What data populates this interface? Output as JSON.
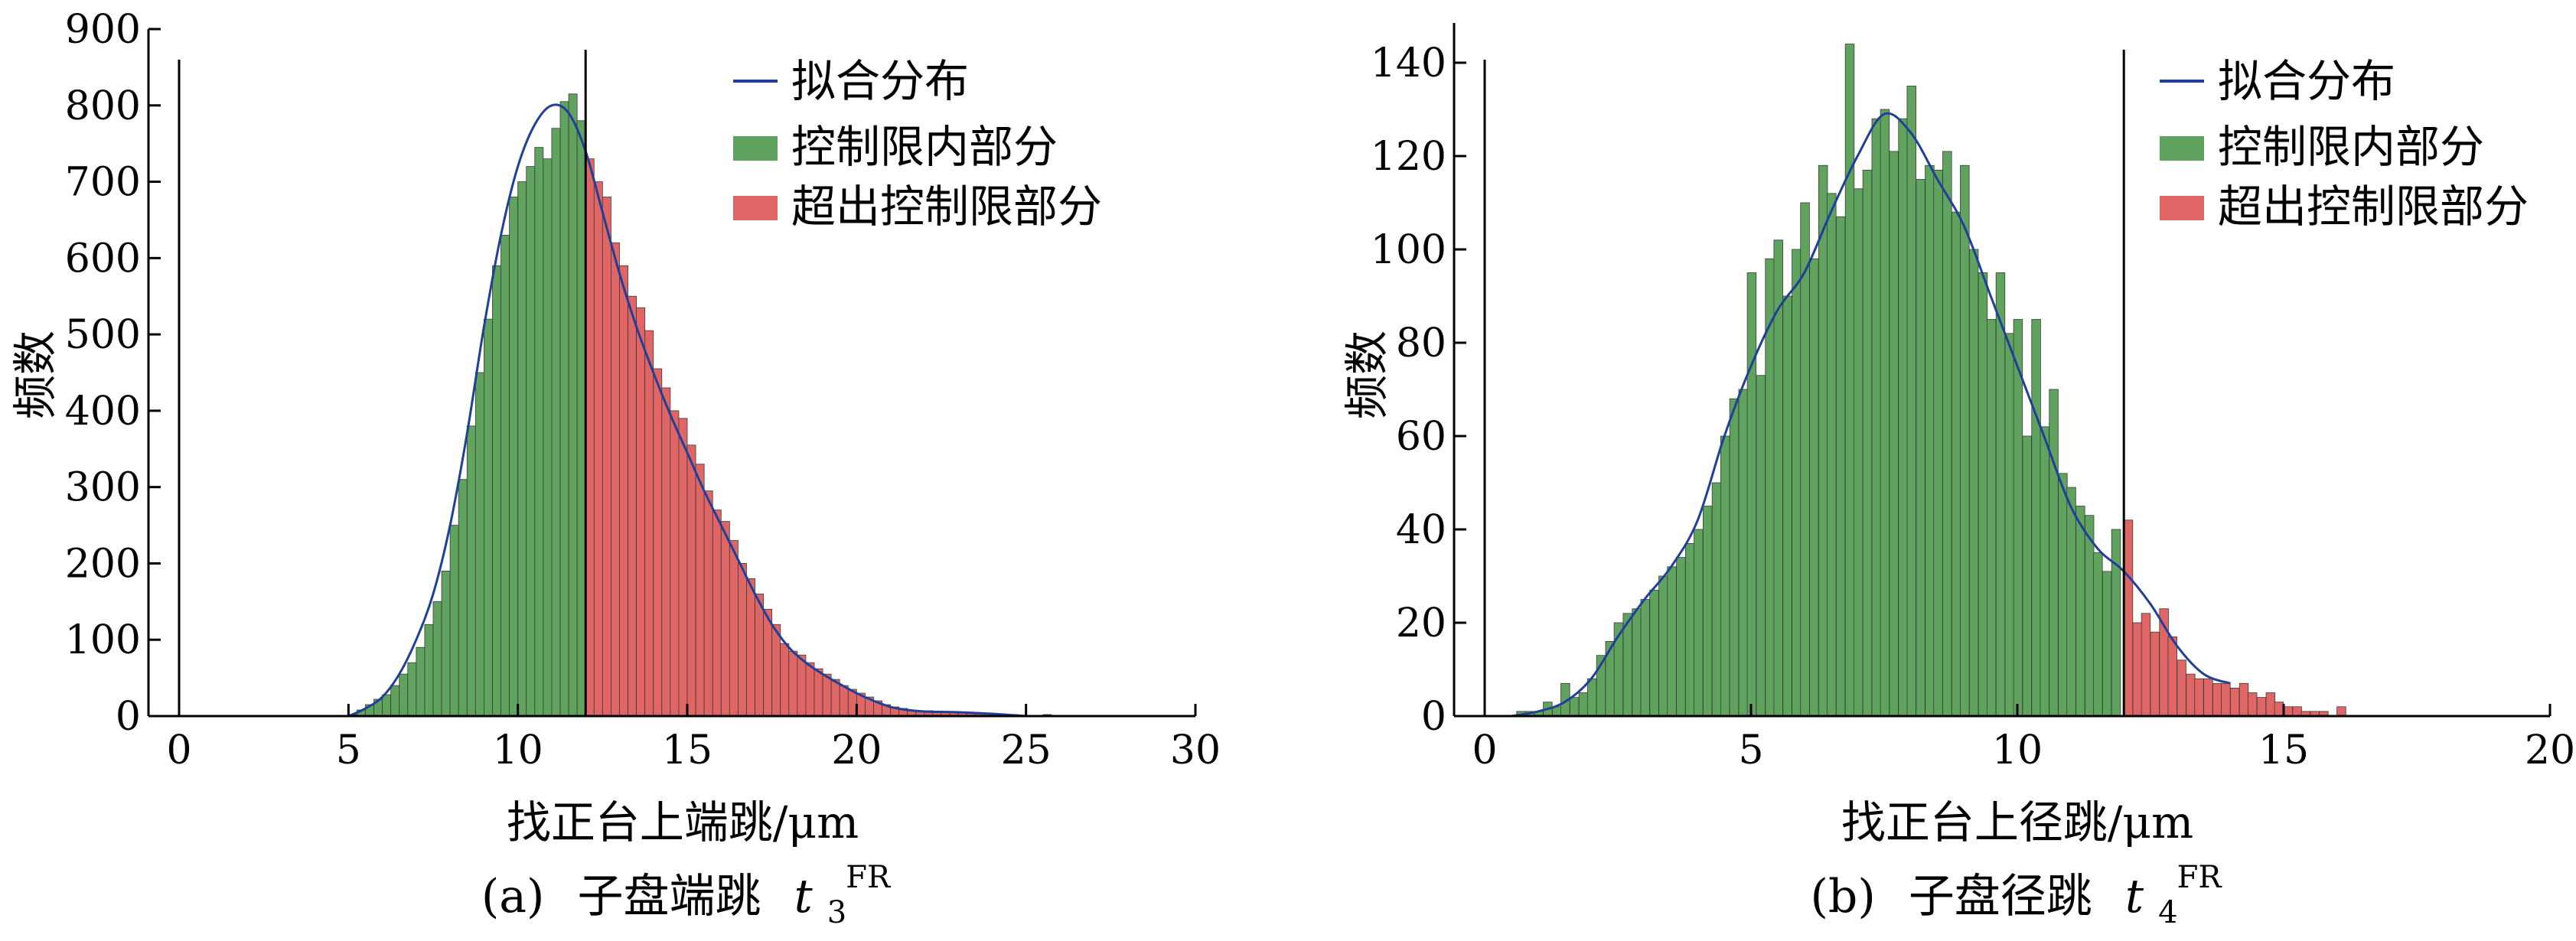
{
  "colors": {
    "in_limit": "#5fa35f",
    "out_limit": "#e06666",
    "fit_line": "#1f3f99",
    "axis": "#000000"
  },
  "chart_data": [
    {
      "type": "bar",
      "caption_prefix": "(a)",
      "caption_text": "子盘端跳",
      "caption_symbol": "t",
      "caption_sub": "3",
      "caption_sup": "FR",
      "xlabel": "找正台上端跳/μm",
      "ylabel": "频数",
      "xlim": [
        0,
        30
      ],
      "ylim": [
        0,
        900
      ],
      "xticks": [
        0,
        5,
        10,
        15,
        20,
        25,
        30
      ],
      "yticks": [
        0,
        100,
        200,
        300,
        400,
        500,
        600,
        700,
        800,
        900
      ],
      "control_limit": 12,
      "bin_width": 0.25,
      "legend": [
        "拟合分布",
        "控制限内部分",
        "超出控制限部分"
      ],
      "legend_position": "top-right",
      "bins": [
        [
          5.0,
          2
        ],
        [
          5.25,
          8
        ],
        [
          5.5,
          15
        ],
        [
          5.75,
          22
        ],
        [
          6.0,
          28
        ],
        [
          6.25,
          40
        ],
        [
          6.5,
          55
        ],
        [
          6.75,
          70
        ],
        [
          7.0,
          90
        ],
        [
          7.25,
          120
        ],
        [
          7.5,
          150
        ],
        [
          7.75,
          190
        ],
        [
          8.0,
          250
        ],
        [
          8.25,
          310
        ],
        [
          8.5,
          380
        ],
        [
          8.75,
          450
        ],
        [
          9.0,
          520
        ],
        [
          9.25,
          590
        ],
        [
          9.5,
          630
        ],
        [
          9.75,
          680
        ],
        [
          10.0,
          700
        ],
        [
          10.25,
          720
        ],
        [
          10.5,
          745
        ],
        [
          10.75,
          730
        ],
        [
          11.0,
          770
        ],
        [
          11.25,
          805
        ],
        [
          11.5,
          815
        ],
        [
          11.75,
          780
        ],
        [
          12.0,
          730
        ],
        [
          12.25,
          700
        ],
        [
          12.5,
          680
        ],
        [
          12.75,
          620
        ],
        [
          13.0,
          590
        ],
        [
          13.25,
          550
        ],
        [
          13.5,
          535
        ],
        [
          13.75,
          505
        ],
        [
          14.0,
          455
        ],
        [
          14.25,
          430
        ],
        [
          14.5,
          400
        ],
        [
          14.75,
          390
        ],
        [
          15.0,
          355
        ],
        [
          15.25,
          330
        ],
        [
          15.5,
          295
        ],
        [
          15.75,
          270
        ],
        [
          16.0,
          255
        ],
        [
          16.25,
          230
        ],
        [
          16.5,
          200
        ],
        [
          16.75,
          180
        ],
        [
          17.0,
          160
        ],
        [
          17.25,
          140
        ],
        [
          17.5,
          120
        ],
        [
          17.75,
          95
        ],
        [
          18.0,
          85
        ],
        [
          18.25,
          80
        ],
        [
          18.5,
          70
        ],
        [
          18.75,
          62
        ],
        [
          19.0,
          55
        ],
        [
          19.25,
          48
        ],
        [
          19.5,
          40
        ],
        [
          19.75,
          35
        ],
        [
          20.0,
          30
        ],
        [
          20.25,
          25
        ],
        [
          20.5,
          20
        ],
        [
          20.75,
          15
        ],
        [
          21.0,
          12
        ],
        [
          21.25,
          10
        ],
        [
          21.5,
          8
        ],
        [
          21.75,
          7
        ],
        [
          22.0,
          7
        ],
        [
          22.25,
          6
        ],
        [
          22.5,
          6
        ],
        [
          22.75,
          5
        ],
        [
          23.0,
          5
        ],
        [
          23.25,
          5
        ],
        [
          23.5,
          4
        ],
        [
          23.75,
          3
        ],
        [
          24.0,
          3
        ],
        [
          24.25,
          2
        ],
        [
          24.5,
          2
        ],
        [
          25.0,
          1
        ],
        [
          25.5,
          2
        ],
        [
          26.0,
          1
        ],
        [
          27.5,
          1
        ],
        [
          28.0,
          1
        ]
      ],
      "fit": [
        [
          5.0,
          0
        ],
        [
          5.5,
          10
        ],
        [
          6.0,
          25
        ],
        [
          6.5,
          55
        ],
        [
          7.0,
          100
        ],
        [
          7.5,
          160
        ],
        [
          8.0,
          250
        ],
        [
          8.5,
          370
        ],
        [
          9.0,
          510
        ],
        [
          9.5,
          630
        ],
        [
          10.0,
          720
        ],
        [
          10.5,
          775
        ],
        [
          11.0,
          800
        ],
        [
          11.5,
          790
        ],
        [
          12.0,
          740
        ],
        [
          12.5,
          660
        ],
        [
          13.0,
          580
        ],
        [
          13.5,
          510
        ],
        [
          14.0,
          450
        ],
        [
          14.5,
          395
        ],
        [
          15.0,
          345
        ],
        [
          15.5,
          295
        ],
        [
          16.0,
          250
        ],
        [
          16.5,
          205
        ],
        [
          17.0,
          160
        ],
        [
          17.5,
          120
        ],
        [
          18.0,
          90
        ],
        [
          18.5,
          70
        ],
        [
          19.0,
          55
        ],
        [
          19.5,
          42
        ],
        [
          20.0,
          30
        ],
        [
          20.5,
          20
        ],
        [
          21.0,
          12
        ],
        [
          21.5,
          8
        ],
        [
          22.0,
          6
        ],
        [
          23.0,
          5
        ],
        [
          24.0,
          3
        ],
        [
          25.0,
          0
        ]
      ]
    },
    {
      "type": "bar",
      "caption_prefix": "(b)",
      "caption_text": "子盘径跳",
      "caption_symbol": "t",
      "caption_sub": "4",
      "caption_sup": "FR",
      "xlabel": "找正台上径跳/μm",
      "ylabel": "频数",
      "xlim": [
        0,
        20
      ],
      "ylim": [
        0,
        145
      ],
      "xticks": [
        0,
        5,
        10,
        15,
        20
      ],
      "yticks": [
        0,
        20,
        40,
        60,
        80,
        100,
        120,
        140
      ],
      "control_limit": 12,
      "bin_width": 0.1667,
      "legend": [
        "拟合分布",
        "控制限内部分",
        "超出控制限部分"
      ],
      "legend_position": "top-right",
      "bins": [
        [
          0.6,
          1
        ],
        [
          0.77,
          1
        ],
        [
          0.93,
          1
        ],
        [
          1.1,
          3
        ],
        [
          1.27,
          2
        ],
        [
          1.43,
          7
        ],
        [
          1.6,
          4
        ],
        [
          1.77,
          5
        ],
        [
          1.93,
          8
        ],
        [
          2.1,
          13
        ],
        [
          2.27,
          16
        ],
        [
          2.43,
          20
        ],
        [
          2.6,
          22
        ],
        [
          2.77,
          23
        ],
        [
          2.93,
          25
        ],
        [
          3.1,
          27
        ],
        [
          3.27,
          30
        ],
        [
          3.43,
          32
        ],
        [
          3.6,
          34
        ],
        [
          3.77,
          37
        ],
        [
          3.93,
          40
        ],
        [
          4.1,
          45
        ],
        [
          4.27,
          50
        ],
        [
          4.43,
          60
        ],
        [
          4.6,
          68
        ],
        [
          4.77,
          70
        ],
        [
          4.93,
          95
        ],
        [
          5.1,
          73
        ],
        [
          5.27,
          98
        ],
        [
          5.43,
          102
        ],
        [
          5.6,
          90
        ],
        [
          5.77,
          100
        ],
        [
          5.93,
          110
        ],
        [
          6.1,
          98
        ],
        [
          6.27,
          118
        ],
        [
          6.43,
          112
        ],
        [
          6.6,
          107
        ],
        [
          6.77,
          144
        ],
        [
          6.93,
          113
        ],
        [
          7.1,
          117
        ],
        [
          7.27,
          128
        ],
        [
          7.43,
          130
        ],
        [
          7.6,
          121
        ],
        [
          7.77,
          128
        ],
        [
          7.93,
          135
        ],
        [
          8.1,
          115
        ],
        [
          8.27,
          118
        ],
        [
          8.43,
          117
        ],
        [
          8.6,
          121
        ],
        [
          8.77,
          108
        ],
        [
          8.93,
          118
        ],
        [
          9.1,
          100
        ],
        [
          9.27,
          95
        ],
        [
          9.43,
          85
        ],
        [
          9.6,
          95
        ],
        [
          9.77,
          82
        ],
        [
          9.93,
          85
        ],
        [
          10.1,
          60
        ],
        [
          10.27,
          85
        ],
        [
          10.43,
          62
        ],
        [
          10.6,
          70
        ],
        [
          10.77,
          52
        ],
        [
          10.93,
          49
        ],
        [
          11.1,
          45
        ],
        [
          11.27,
          43
        ],
        [
          11.43,
          35
        ],
        [
          11.6,
          31
        ],
        [
          11.77,
          40
        ],
        [
          12.0,
          42
        ],
        [
          12.17,
          20
        ],
        [
          12.33,
          22
        ],
        [
          12.5,
          18
        ],
        [
          12.67,
          23
        ],
        [
          12.83,
          17
        ],
        [
          13.0,
          12
        ],
        [
          13.17,
          9
        ],
        [
          13.33,
          8
        ],
        [
          13.5,
          8
        ],
        [
          13.67,
          7
        ],
        [
          13.83,
          7
        ],
        [
          14.0,
          6
        ],
        [
          14.17,
          7
        ],
        [
          14.33,
          5
        ],
        [
          14.5,
          4
        ],
        [
          14.67,
          5
        ],
        [
          14.83,
          3
        ],
        [
          15.0,
          2
        ],
        [
          15.17,
          2
        ],
        [
          15.33,
          1
        ],
        [
          15.5,
          1
        ],
        [
          15.67,
          1
        ],
        [
          15.83,
          0
        ],
        [
          16.0,
          2
        ]
      ],
      "fit": [
        [
          0.5,
          0
        ],
        [
          1.0,
          1
        ],
        [
          1.5,
          3
        ],
        [
          2.0,
          8
        ],
        [
          2.5,
          17
        ],
        [
          3.0,
          25
        ],
        [
          3.5,
          32
        ],
        [
          4.0,
          42
        ],
        [
          4.5,
          60
        ],
        [
          5.0,
          75
        ],
        [
          5.5,
          87
        ],
        [
          6.0,
          95
        ],
        [
          6.5,
          108
        ],
        [
          7.0,
          120
        ],
        [
          7.5,
          129
        ],
        [
          8.0,
          125
        ],
        [
          8.5,
          115
        ],
        [
          9.0,
          105
        ],
        [
          9.5,
          90
        ],
        [
          10.0,
          75
        ],
        [
          10.5,
          60
        ],
        [
          11.0,
          45
        ],
        [
          11.5,
          36
        ],
        [
          12.0,
          31
        ],
        [
          12.5,
          24
        ],
        [
          13.0,
          15
        ],
        [
          13.5,
          9
        ],
        [
          14.0,
          7
        ]
      ]
    }
  ]
}
